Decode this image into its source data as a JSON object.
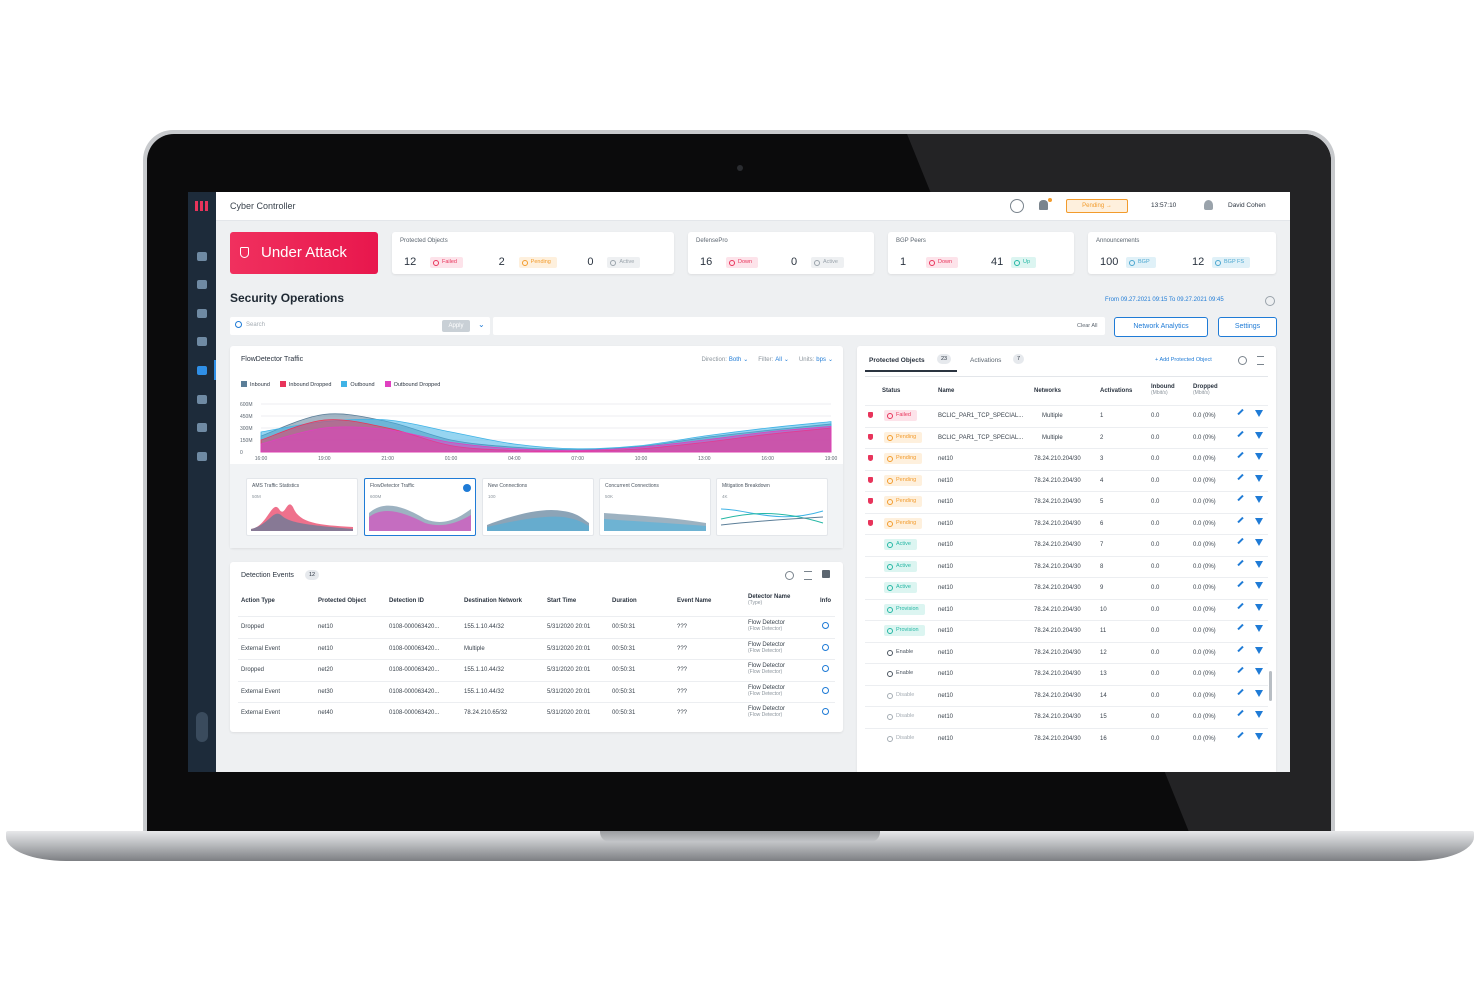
{
  "app": {
    "title": "Cyber Controller",
    "status": "Pending",
    "time": "13:57:10",
    "user": "David Cohen"
  },
  "alert": "Under Attack",
  "summary": {
    "cards": [
      {
        "title": "Protected Objects",
        "items": [
          {
            "value": 12,
            "label": "Failed",
            "color": "#e8345b",
            "bg": "#fde3ea"
          },
          {
            "value": 2,
            "label": "Pending",
            "color": "#f29b2c",
            "bg": "#fef0dd"
          },
          {
            "value": 0,
            "label": "Active",
            "color": "#9aa3ab",
            "bg": "#eef0f2"
          }
        ]
      },
      {
        "title": "DefensePro",
        "items": [
          {
            "value": 16,
            "label": "Down",
            "color": "#e8345b",
            "bg": "#fde3ea"
          },
          {
            "value": 0,
            "label": "Active",
            "color": "#9aa3ab",
            "bg": "#eef0f2"
          }
        ]
      },
      {
        "title": "BGP Peers",
        "items": [
          {
            "value": 1,
            "label": "Down",
            "color": "#e8345b",
            "bg": "#fde3ea"
          },
          {
            "value": 41,
            "label": "Up",
            "color": "#24b7a4",
            "bg": "#dcf5f1"
          }
        ]
      },
      {
        "title": "Announcements",
        "items": [
          {
            "value": 100,
            "label": "BGP",
            "color": "#4ba6cf",
            "bg": "#e0f1f8"
          },
          {
            "value": 12,
            "label": "BGP FS",
            "color": "#4ba6cf",
            "bg": "#e0f1f8"
          }
        ]
      }
    ]
  },
  "section": {
    "title": "Security Operations",
    "from_label": "From",
    "from": "09.27.2021 09:15",
    "to_label": "To",
    "to": "09.27.2021 09:45"
  },
  "toolbar": {
    "search": "Search",
    "apply": "Apply",
    "clear": "Clear All",
    "network_analytics": "Network Analytics",
    "settings": "Settings"
  },
  "traffic": {
    "title": "FlowDetector Traffic",
    "controls": [
      {
        "label": "Direction:",
        "value": "Both"
      },
      {
        "label": "Filter:",
        "value": "All"
      },
      {
        "label": "Units:",
        "value": "bps"
      }
    ],
    "chart_data": {
      "type": "area",
      "x": [
        "16:00",
        "19:00",
        "21:00",
        "01:00",
        "04:00",
        "07:00",
        "10:00",
        "13:00",
        "16:00",
        "19:00"
      ],
      "ylim": [
        0,
        650
      ],
      "yticks": [
        {
          "value": 0,
          "label": "0"
        },
        {
          "value": 150,
          "label": "150M"
        },
        {
          "value": 300,
          "label": "300M"
        },
        {
          "value": 450,
          "label": "450M"
        },
        {
          "value": 600,
          "label": "600M"
        }
      ],
      "series": [
        {
          "name": "Inbound",
          "color": "#5b7e98",
          "values": [
            200,
            470,
            380,
            150,
            60,
            30,
            70,
            180,
            270,
            350
          ]
        },
        {
          "name": "Inbound Dropped",
          "color": "#e8345b",
          "values": [
            150,
            400,
            300,
            80,
            20,
            10,
            40,
            120,
            220,
            300
          ]
        },
        {
          "name": "Outbound",
          "color": "#3fb3e6",
          "values": [
            250,
            380,
            400,
            250,
            100,
            40,
            80,
            200,
            300,
            380
          ]
        },
        {
          "name": "Outbound Dropped",
          "color": "#e040c0",
          "values": [
            100,
            300,
            280,
            120,
            40,
            20,
            60,
            150,
            250,
            320
          ]
        }
      ]
    },
    "thumbnails": [
      {
        "title": "AMS Traffic Statistics",
        "scale": "50M"
      },
      {
        "title": "FlowDetector Traffic",
        "scale": "600M"
      },
      {
        "title": "New Connections",
        "scale": "100"
      },
      {
        "title": "Concurrent Connections",
        "scale": "50K"
      },
      {
        "title": "Mitigation Breakdown",
        "scale": "4K"
      }
    ]
  },
  "detection_events": {
    "title": "Detection Events",
    "count": 12,
    "columns": [
      "Action Type",
      "Protected Object",
      "Detection ID",
      "Destination Network",
      "Start Time",
      "Duration",
      "Event Name",
      [
        "Detector Name",
        "(Type)"
      ],
      "Info"
    ],
    "rows": [
      [
        "Dropped",
        "net10",
        "0108-000063420...",
        "155.1.10.44/32",
        "5/31/2020 20:01",
        "00:50:31",
        "???",
        [
          "Flow Detector",
          "(Flow Detector)"
        ]
      ],
      [
        "External Event",
        "net10",
        "0108-000063420...",
        "Multiple",
        "5/31/2020 20:01",
        "00:50:31",
        "???",
        [
          "Flow Detector",
          "(Flow Detector)"
        ]
      ],
      [
        "Dropped",
        "net20",
        "0108-000063420...",
        "155.1.10.44/32",
        "5/31/2020 20:01",
        "00:50:31",
        "???",
        [
          "Flow Detector",
          "(Flow Detector)"
        ]
      ],
      [
        "External Event",
        "net30",
        "0108-000063420...",
        "155.1.10.44/32",
        "5/31/2020 20:01",
        "00:50:31",
        "???",
        [
          "Flow Detector",
          "(Flow Detector)"
        ]
      ],
      [
        "External Event",
        "net40",
        "0108-000063420...",
        "78.24.210.65/32",
        "5/31/2020 20:01",
        "00:50:31",
        "???",
        [
          "Flow Detector",
          "(Flow Detector)"
        ]
      ]
    ]
  },
  "protected_objects": {
    "tab": "Protected Objects",
    "count": 23,
    "tab2": "Activations",
    "count2": 7,
    "add": "Add Protected Object",
    "status_styles": {
      "Failed": {
        "color": "#e8345b",
        "bg": "#fde3ea"
      },
      "Pending": {
        "color": "#f29b2c",
        "bg": "#fef0dd"
      },
      "Active": {
        "color": "#24b7a4",
        "bg": "#dcf5f1"
      },
      "Provision": {
        "color": "#24b7a4",
        "bg": "#dcf5f1"
      },
      "Enable": {
        "color": "#4b5560",
        "bg": "#ffffff"
      },
      "Disable": {
        "color": "#a4acb3",
        "bg": "#ffffff"
      }
    },
    "columns": [
      "Status",
      "Name",
      "Networks",
      "Activations",
      [
        "Inbound",
        "(Mbit/s)"
      ],
      [
        "Dropped",
        "(Mbit/s)"
      ]
    ],
    "rows": [
      [
        "Failed",
        "BCLIC_PAR1_TCP_SPECIAL...",
        "Multiple",
        1,
        "0.0",
        "0.0 (0%)"
      ],
      [
        "Pending",
        "BCLIC_PAR1_TCP_SPECIAL...",
        "Multiple",
        2,
        "0.0",
        "0.0 (0%)"
      ],
      [
        "Pending",
        "net10",
        "78.24.210.204/30",
        3,
        "0.0",
        "0.0 (0%)"
      ],
      [
        "Pending",
        "net10",
        "78.24.210.204/30",
        4,
        "0.0",
        "0.0 (0%)"
      ],
      [
        "Pending",
        "net10",
        "78.24.210.204/30",
        5,
        "0.0",
        "0.0 (0%)"
      ],
      [
        "Pending",
        "net10",
        "78.24.210.204/30",
        6,
        "0.0",
        "0.0 (0%)"
      ],
      [
        "Active",
        "net10",
        "78.24.210.204/30",
        7,
        "0.0",
        "0.0 (0%)"
      ],
      [
        "Active",
        "net10",
        "78.24.210.204/30",
        8,
        "0.0",
        "0.0 (0%)"
      ],
      [
        "Active",
        "net10",
        "78.24.210.204/30",
        9,
        "0.0",
        "0.0 (0%)"
      ],
      [
        "Provision",
        "net10",
        "78.24.210.204/30",
        10,
        "0.0",
        "0.0 (0%)"
      ],
      [
        "Provision",
        "net10",
        "78.24.210.204/30",
        11,
        "0.0",
        "0.0 (0%)"
      ],
      [
        "Enable",
        "net10",
        "78.24.210.204/30",
        12,
        "0.0",
        "0.0 (0%)"
      ],
      [
        "Enable",
        "net10",
        "78.24.210.204/30",
        13,
        "0.0",
        "0.0 (0%)"
      ],
      [
        "Disable",
        "net10",
        "78.24.210.204/30",
        14,
        "0.0",
        "0.0 (0%)"
      ],
      [
        "Disable",
        "net10",
        "78.24.210.204/30",
        15,
        "0.0",
        "0.0 (0%)"
      ],
      [
        "Disable",
        "net10",
        "78.24.210.204/30",
        16,
        "0.0",
        "0.0 (0%)"
      ]
    ]
  }
}
